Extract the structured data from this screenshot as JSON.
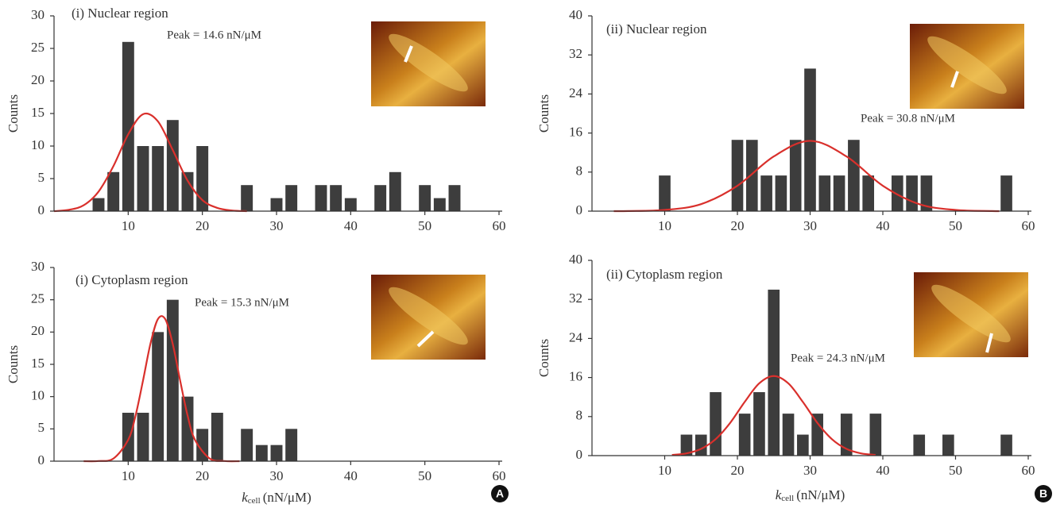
{
  "panel_labels": [
    "A",
    "B"
  ],
  "chart_data": [
    {
      "type": "bar",
      "title": "(i) Nuclear region",
      "annotation": "Peak = 14.6 nN/μM",
      "y_label": "Counts",
      "x": [
        6,
        8,
        10,
        12,
        14,
        16,
        18,
        20,
        26,
        30,
        32,
        36,
        38,
        40,
        44,
        46,
        50,
        52,
        54
      ],
      "values": [
        2,
        6,
        26,
        10,
        10,
        14,
        6,
        10,
        4,
        2,
        4,
        4,
        4,
        2,
        4,
        6,
        4,
        2,
        4
      ],
      "color": "#3d3d3d",
      "fit": {
        "color": "#d9302c",
        "x": [
          0,
          2,
          4,
          6,
          8,
          10,
          12,
          14,
          16,
          18,
          20,
          22,
          24,
          26
        ],
        "values": [
          0.0,
          0.2,
          0.9,
          3.0,
          6.9,
          11.8,
          14.9,
          13.8,
          9.4,
          4.7,
          1.7,
          0.5,
          0.1,
          0.0
        ]
      },
      "xlim": [
        0,
        60
      ],
      "xticks": [
        10,
        20,
        30,
        40,
        50,
        60
      ],
      "ylim": [
        0,
        30
      ],
      "yticks": [
        0,
        5,
        10,
        15,
        20,
        25,
        30
      ]
    },
    {
      "type": "bar",
      "title": "(i) Cytoplasm region",
      "annotation": "Peak = 15.3 nN/μM",
      "y_label": "Counts",
      "x_label": {
        "symbol": "k",
        "subscript": "cell",
        "unit": "(nN/μM)"
      },
      "x": [
        10,
        12,
        14,
        16,
        18,
        20,
        22,
        26,
        28,
        30,
        32
      ],
      "values": [
        7.5,
        7.5,
        20,
        25,
        10,
        5,
        7.5,
        5,
        2.5,
        2.5,
        5
      ],
      "color": "#3d3d3d",
      "fit": {
        "color": "#d9302c",
        "x": [
          4,
          6,
          8,
          10,
          11,
          12,
          13,
          14,
          15,
          16,
          17,
          18,
          19,
          21,
          23,
          25
        ],
        "values": [
          0,
          0.02,
          0.4,
          3.3,
          7.1,
          12.5,
          18.2,
          22,
          22,
          18.2,
          12.5,
          7.1,
          3.3,
          0.4,
          0.02,
          0
        ]
      },
      "xlim": [
        0,
        60
      ],
      "xticks": [
        10,
        20,
        30,
        40,
        50,
        60
      ],
      "ylim": [
        0,
        30
      ],
      "yticks": [
        0,
        5,
        10,
        15,
        20,
        25,
        30
      ]
    },
    {
      "type": "bar",
      "title": "(ii) Nuclear region",
      "annotation": "Peak = 30.8 nN/μM",
      "y_label": "Counts",
      "x": [
        10,
        20,
        22,
        24,
        26,
        28,
        30,
        32,
        34,
        36,
        38,
        42,
        44,
        46,
        57
      ],
      "values": [
        7.3,
        14.6,
        14.6,
        7.3,
        7.3,
        14.6,
        29.2,
        7.3,
        7.3,
        14.6,
        7.3,
        7.3,
        7.3,
        7.3,
        7.3
      ],
      "color": "#3d3d3d",
      "fit": {
        "color": "#d9302c",
        "x": [
          3,
          5,
          10,
          15,
          20,
          25,
          30,
          35,
          40,
          45,
          50,
          55,
          56
        ],
        "values": [
          0,
          0.02,
          0.24,
          1.44,
          5.2,
          11.2,
          14.4,
          11.2,
          5.2,
          1.44,
          0.24,
          0.02,
          0
        ]
      },
      "xlim": [
        0,
        60
      ],
      "xticks": [
        10,
        20,
        30,
        40,
        50,
        60
      ],
      "ylim": [
        0,
        40
      ],
      "yticks": [
        0,
        8,
        16,
        24,
        32,
        40
      ]
    },
    {
      "type": "bar",
      "title": "(ii) Cytoplasm region",
      "annotation": "Peak = 24.3 nN/μM",
      "y_label": "Counts",
      "x_label": {
        "symbol": "k",
        "subscript": "cell",
        "unit": "(nN/μM)"
      },
      "x": [
        13,
        15,
        17,
        21,
        23,
        25,
        27,
        29,
        31,
        35,
        39,
        45,
        49,
        57
      ],
      "values": [
        4.3,
        4.3,
        13,
        8.6,
        13,
        34,
        8.6,
        4.3,
        8.6,
        8.6,
        8.6,
        4.3,
        4.3,
        4.3
      ],
      "color": "#3d3d3d",
      "fit": {
        "color": "#d9302c",
        "x": [
          11,
          13,
          15,
          17,
          19,
          21,
          23,
          25,
          27,
          29,
          31,
          33,
          35,
          37,
          39
        ],
        "values": [
          0.13,
          0.46,
          1.38,
          3.37,
          6.7,
          11,
          14.8,
          16.3,
          14.8,
          11,
          6.7,
          3.37,
          1.38,
          0.46,
          0.13
        ]
      },
      "xlim": [
        0,
        60
      ],
      "xticks": [
        10,
        20,
        30,
        40,
        50,
        60
      ],
      "ylim": [
        0,
        40
      ],
      "yticks": [
        0,
        8,
        16,
        24,
        32,
        40
      ]
    }
  ]
}
